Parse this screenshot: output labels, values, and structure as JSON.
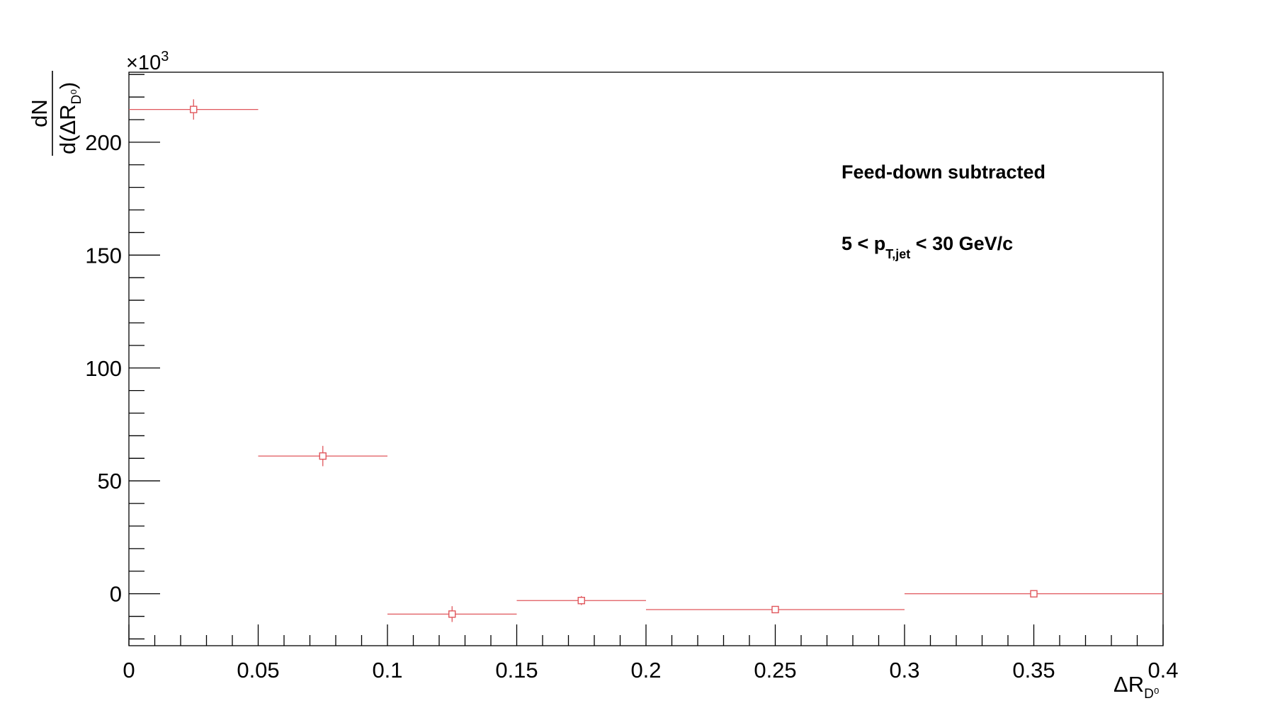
{
  "chart_data": {
    "type": "scatter",
    "color": "#e0565b",
    "xlabel": "ΔR",
    "xlabel_sub": "D⁰",
    "ylabel_numerator": "dN",
    "ylabel_denominator": "d(ΔR",
    "ylabel_denominator_sub": "D⁰",
    "ylabel_denominator_close": ")",
    "y_multiplier": "×10",
    "y_multiplier_exp": "3",
    "xlim": [
      0,
      0.4
    ],
    "ylim": [
      -23,
      231
    ],
    "x_ticks": [
      "0",
      "0.05",
      "0.1",
      "0.15",
      "0.2",
      "0.25",
      "0.3",
      "0.35",
      "0.4"
    ],
    "x_tick_values": [
      0,
      0.05,
      0.1,
      0.15,
      0.2,
      0.25,
      0.3,
      0.35,
      0.4
    ],
    "y_ticks": [
      "0",
      "50",
      "100",
      "150",
      "200"
    ],
    "y_tick_values": [
      0,
      50,
      100,
      150,
      200
    ],
    "grid": false,
    "annotations": {
      "line1": "Feed-down subtracted",
      "line2_prefix": "5 < p",
      "line2_sub": "T,jet",
      "line2_suffix": " < 30 GeV/c"
    },
    "points": [
      {
        "x": 0.025,
        "xlow": 0.0,
        "xhigh": 0.05,
        "y": 214.5,
        "yerr": 4.5
      },
      {
        "x": 0.075,
        "xlow": 0.05,
        "xhigh": 0.1,
        "y": 61.0,
        "yerr": 4.5
      },
      {
        "x": 0.125,
        "xlow": 0.1,
        "xhigh": 0.15,
        "y": -9.0,
        "yerr": 3.5
      },
      {
        "x": 0.175,
        "xlow": 0.15,
        "xhigh": 0.2,
        "y": -3.0,
        "yerr": 2.0
      },
      {
        "x": 0.25,
        "xlow": 0.2,
        "xhigh": 0.3,
        "y": -7.0,
        "yerr": 1.0
      },
      {
        "x": 0.35,
        "xlow": 0.3,
        "xhigh": 0.4,
        "y": 0.0,
        "yerr": 0.5
      }
    ]
  }
}
